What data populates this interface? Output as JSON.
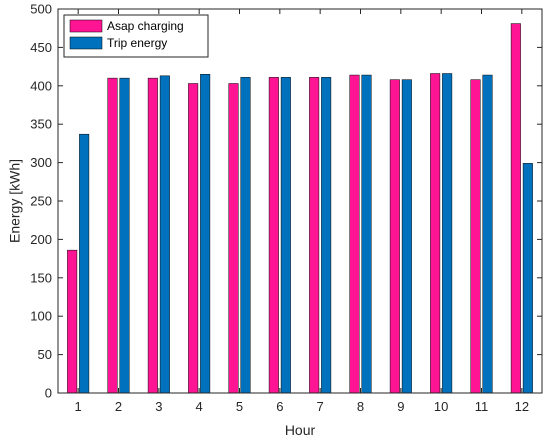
{
  "chart_data": {
    "type": "bar",
    "xlabel": "Hour",
    "ylabel": "Energy [kWh]",
    "categories": [
      "1",
      "2",
      "3",
      "4",
      "5",
      "6",
      "7",
      "8",
      "9",
      "10",
      "11",
      "12"
    ],
    "ylim": [
      0,
      500
    ],
    "yticks": [
      0,
      50,
      100,
      150,
      200,
      250,
      300,
      350,
      400,
      450,
      500
    ],
    "grid": false,
    "legend_position": "top-left",
    "series": [
      {
        "name": "Asap charging",
        "color": "#ff1493",
        "values": [
          186,
          410,
          410,
          403,
          403,
          411,
          411,
          414,
          408,
          416,
          408,
          481
        ]
      },
      {
        "name": "Trip energy",
        "color": "#0072bd",
        "values": [
          337,
          410,
          413,
          415,
          411,
          411,
          411,
          414,
          408,
          416,
          414,
          299
        ]
      }
    ]
  }
}
